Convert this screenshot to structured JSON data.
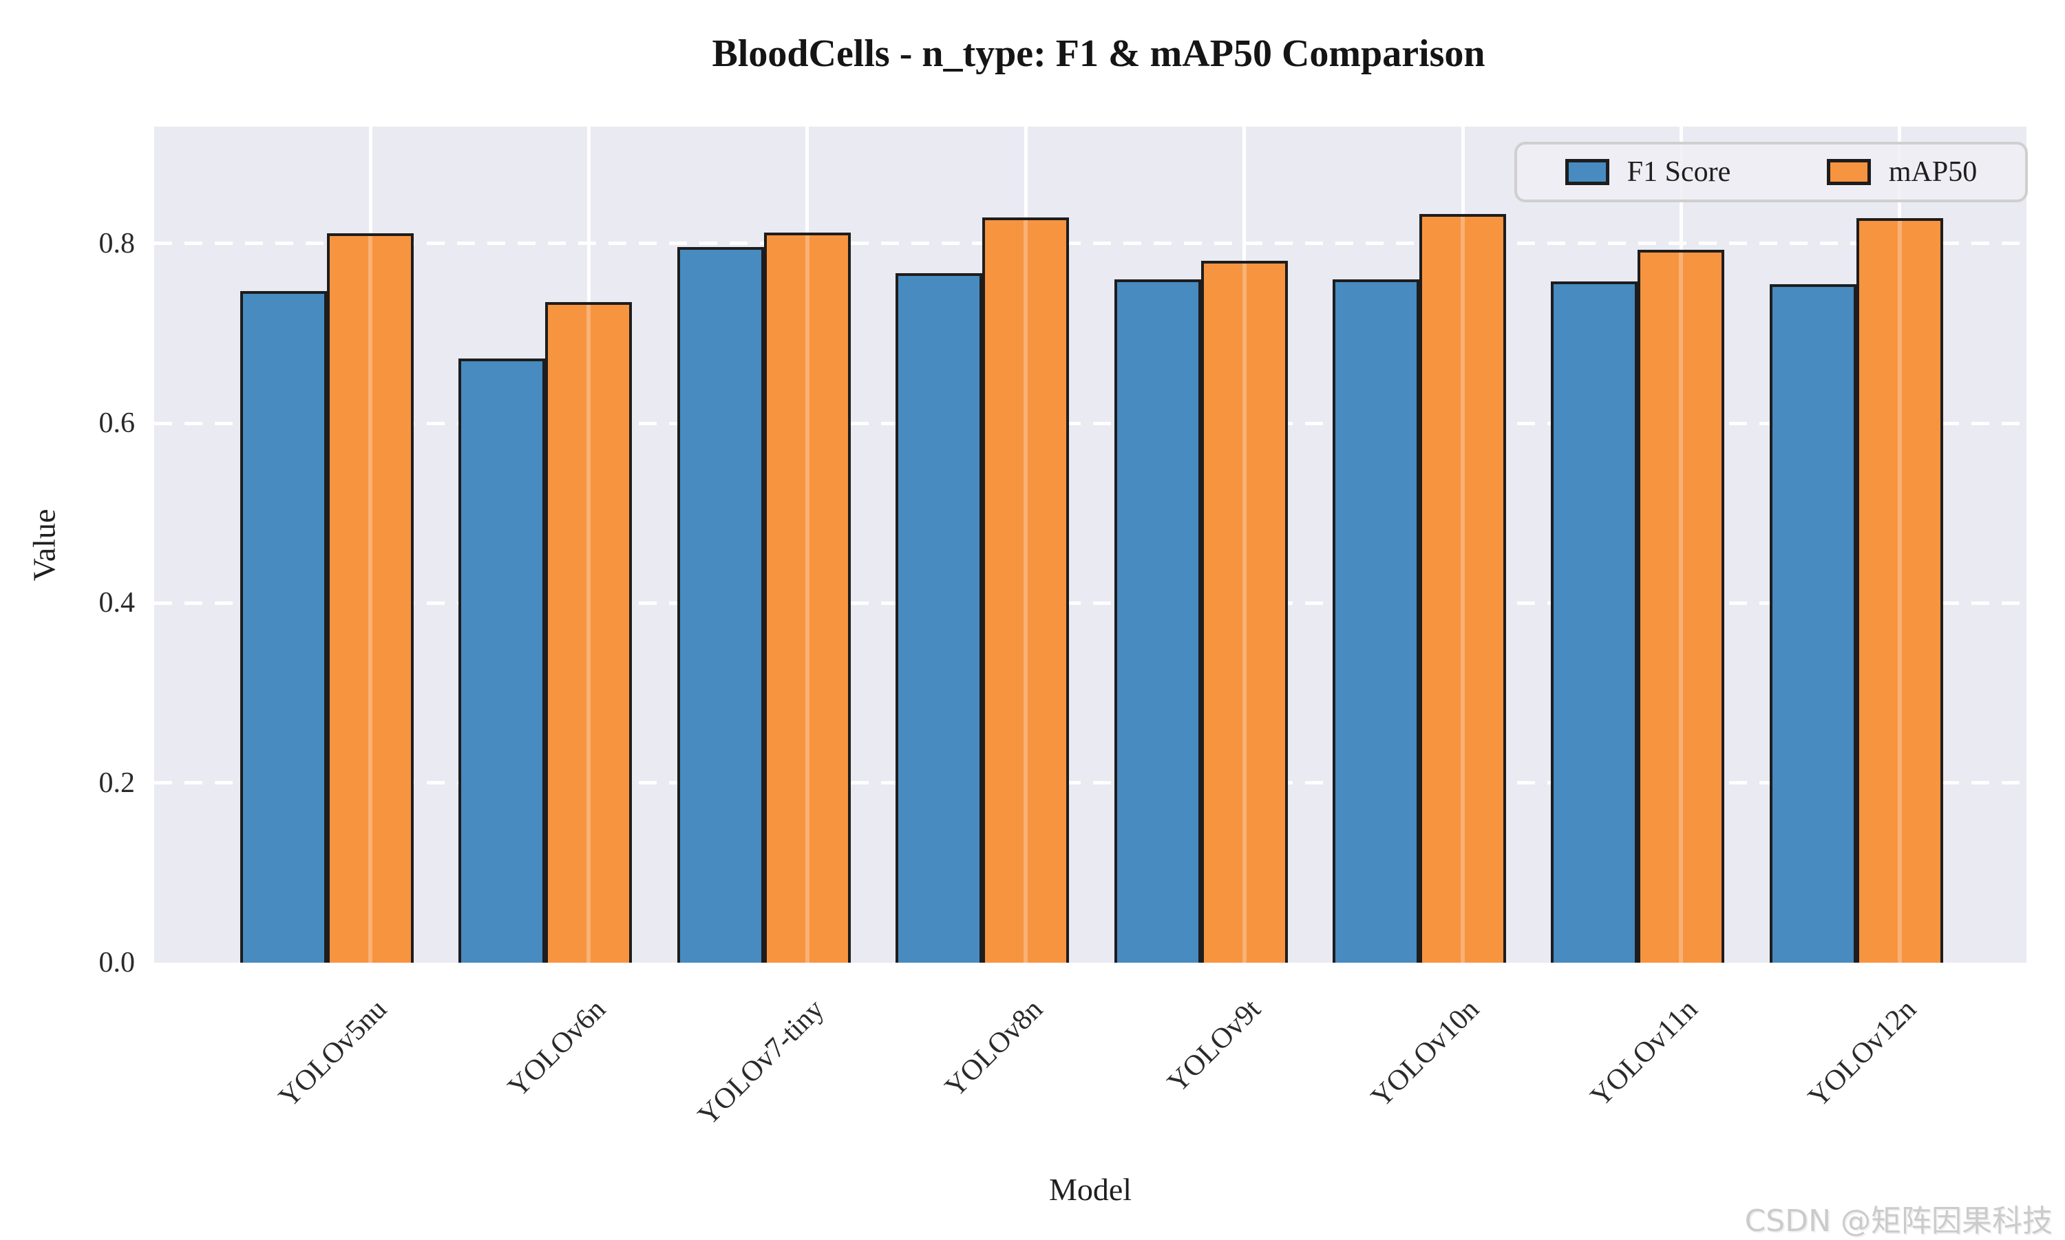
{
  "watermark": "CSDN @矩阵因果科技",
  "chart_data": {
    "type": "bar",
    "title": "BloodCells - n_type: F1 & mAP50 Comparison",
    "xlabel": "Model",
    "ylabel": "Value",
    "categories": [
      "YOLOv5nu",
      "YOLOv6n",
      "YOLOv7-tiny",
      "YOLOv8n",
      "YOLOv9t",
      "YOLOv10n",
      "YOLOv11n",
      "YOLOv12n"
    ],
    "series": [
      {
        "name": "F1 Score",
        "color": "#478bc0",
        "values": [
          0.747,
          0.672,
          0.796,
          0.767,
          0.76,
          0.76,
          0.758,
          0.755
        ]
      },
      {
        "name": "mAP50",
        "color": "#f79440",
        "values": [
          0.811,
          0.735,
          0.812,
          0.829,
          0.781,
          0.833,
          0.793,
          0.828
        ]
      }
    ],
    "ylim": [
      0,
      0.93
    ],
    "yticks": [
      0.0,
      0.2,
      0.4,
      0.6,
      0.8
    ],
    "ytick_labels": [
      "0.0",
      "0.2",
      "0.4",
      "0.6",
      "0.8"
    ],
    "legend": {
      "position": "upper right",
      "entries": [
        "F1 Score",
        "mAP50"
      ]
    },
    "grid": {
      "horizontal": "white dashed",
      "vertical": "white solid"
    },
    "plot_background": "#e9eaf2",
    "bar_edge_color": "#1d1d1d"
  }
}
